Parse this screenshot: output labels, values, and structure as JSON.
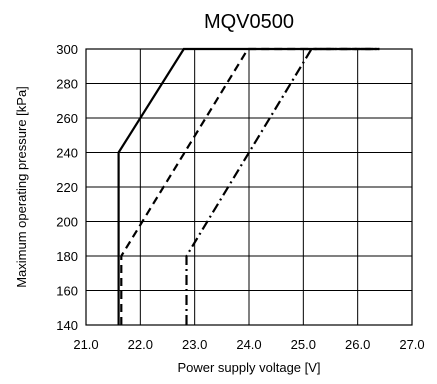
{
  "chart_data": {
    "type": "line",
    "title": "MQV0500",
    "xlabel": "Power supply voltage [V]",
    "ylabel": "Maximum operating pressure [kPa]",
    "xlim": [
      21.0,
      27.0
    ],
    "ylim": [
      140,
      300
    ],
    "x_ticks": [
      "21.0",
      "22.0",
      "23.0",
      "24.0",
      "25.0",
      "26.0",
      "27.0"
    ],
    "y_ticks": [
      "140",
      "160",
      "180",
      "200",
      "220",
      "240",
      "260",
      "280",
      "300"
    ],
    "grid": true,
    "legend": false,
    "series": [
      {
        "line_style": "solid",
        "points": [
          [
            21.6,
            140
          ],
          [
            21.6,
            240
          ],
          [
            22.8,
            300
          ],
          [
            26.4,
            300
          ]
        ]
      },
      {
        "line_style": "dashed",
        "points": [
          [
            21.65,
            140
          ],
          [
            21.65,
            180
          ],
          [
            23.98,
            300
          ],
          [
            26.4,
            300
          ]
        ]
      },
      {
        "line_style": "dashdot",
        "points": [
          [
            22.85,
            140
          ],
          [
            22.85,
            180
          ],
          [
            25.15,
            300
          ],
          [
            26.4,
            300
          ]
        ]
      }
    ]
  }
}
